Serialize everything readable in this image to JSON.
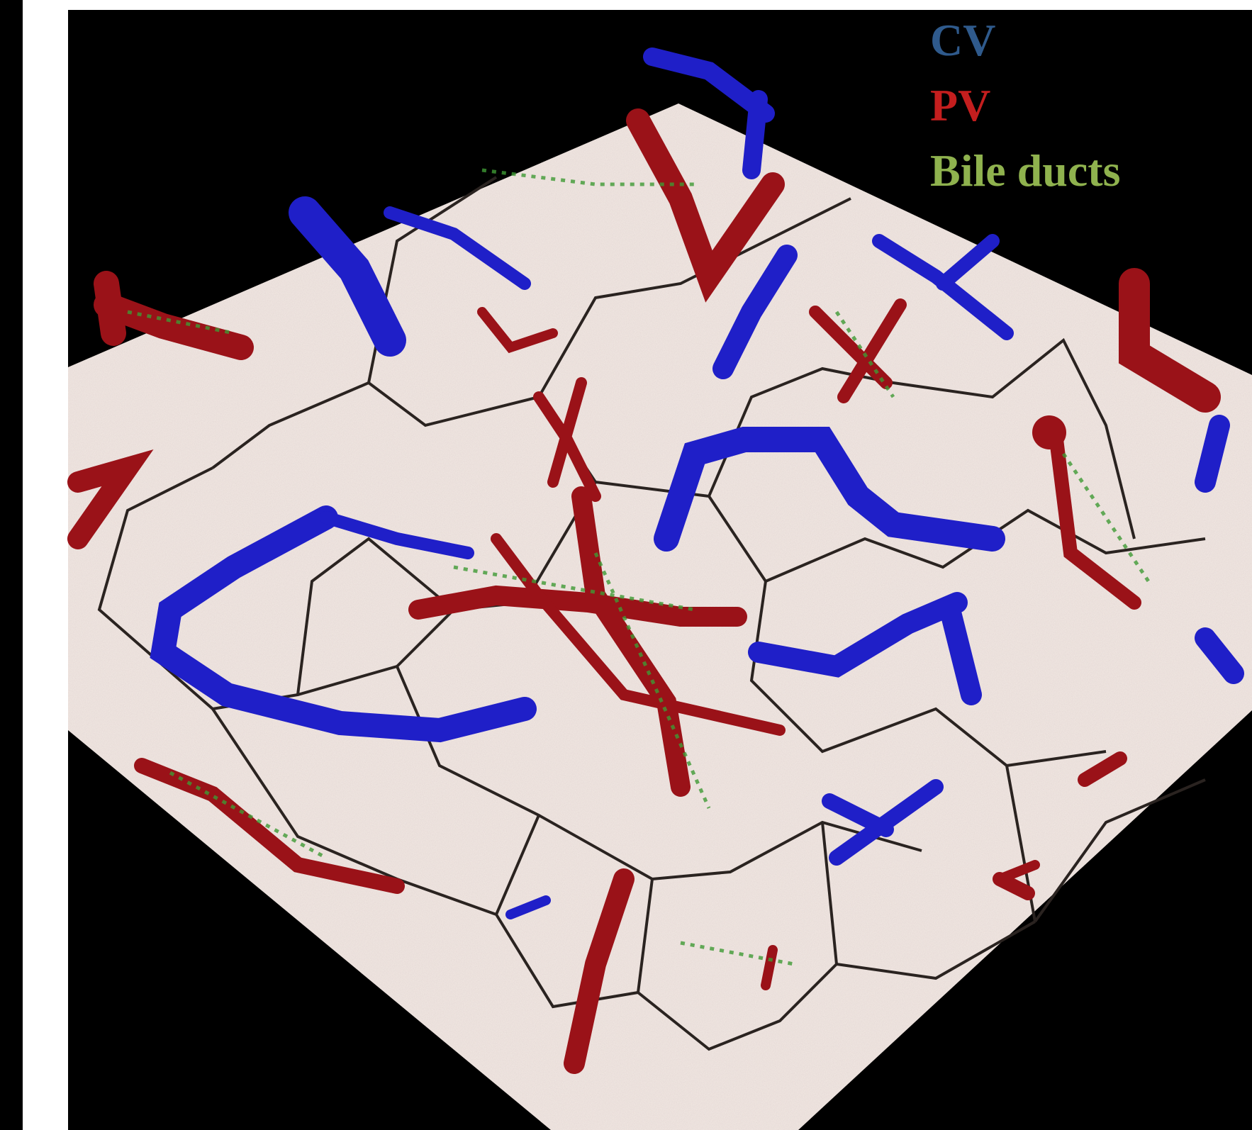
{
  "legend": [
    {
      "label": "CV",
      "color": "#2f5a8c"
    },
    {
      "label": "PV",
      "color": "#c41e1e"
    },
    {
      "label": "Bile ducts",
      "color": "#8fb24e"
    }
  ]
}
